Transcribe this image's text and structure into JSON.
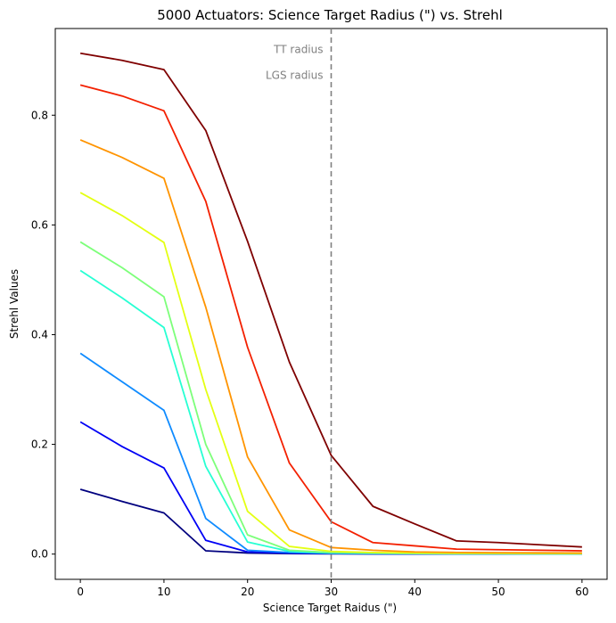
{
  "chart_data": {
    "type": "line",
    "title": "5000 Actuators: Science Target Radius (\") vs. Strehl",
    "xlabel": "Science Target Raidus (\")",
    "ylabel": "Strehl Values",
    "xlim": [
      -3,
      63
    ],
    "ylim": [
      -0.046,
      0.958
    ],
    "xticks": [
      0,
      10,
      20,
      30,
      40,
      50,
      60
    ],
    "yticks": [
      0.0,
      0.2,
      0.4,
      0.6,
      0.8
    ],
    "xtick_labels": [
      "0",
      "10",
      "20",
      "30",
      "40",
      "50",
      "60"
    ],
    "ytick_labels": [
      "0.0",
      "0.2",
      "0.4",
      "0.6",
      "0.8"
    ],
    "grid": false,
    "legend": "none",
    "x": [
      0,
      5,
      10,
      15,
      20,
      25,
      30,
      35,
      40,
      45,
      50,
      55,
      60
    ],
    "series": [
      {
        "color": "#00007f",
        "values": [
          0.118,
          0.096,
          0.075,
          0.006,
          0.002,
          0.001,
          0.0005,
          0.0003,
          0.0002,
          0.0001,
          0.0001,
          0.0001,
          0.0001
        ]
      },
      {
        "color": "#0000f5",
        "values": [
          0.241,
          0.196,
          0.157,
          0.025,
          0.004,
          0.002,
          0.001,
          0.0006,
          0.0004,
          0.0003,
          0.0003,
          0.0002,
          0.0002
        ]
      },
      {
        "color": "#0f8bff",
        "values": [
          0.366,
          0.314,
          0.262,
          0.065,
          0.007,
          0.003,
          0.0015,
          0.001,
          0.0008,
          0.0006,
          0.0005,
          0.0005,
          0.0004
        ]
      },
      {
        "color": "#27ffd3",
        "values": [
          0.517,
          0.467,
          0.413,
          0.16,
          0.022,
          0.005,
          0.002,
          0.0015,
          0.001,
          0.0008,
          0.0007,
          0.0006,
          0.0005
        ]
      },
      {
        "color": "#7dff7a",
        "values": [
          0.569,
          0.522,
          0.469,
          0.2,
          0.035,
          0.007,
          0.003,
          0.002,
          0.0015,
          0.001,
          0.0009,
          0.0008,
          0.0007
        ]
      },
      {
        "color": "#e4ff13",
        "values": [
          0.659,
          0.617,
          0.568,
          0.3,
          0.078,
          0.014,
          0.005,
          0.003,
          0.002,
          0.0018,
          0.0016,
          0.0014,
          0.0012
        ]
      },
      {
        "color": "#ff9400",
        "values": [
          0.755,
          0.723,
          0.685,
          0.45,
          0.177,
          0.044,
          0.012,
          0.007,
          0.004,
          0.003,
          0.0025,
          0.0022,
          0.002
        ]
      },
      {
        "color": "#f32000",
        "values": [
          0.855,
          0.835,
          0.808,
          0.643,
          0.377,
          0.166,
          0.059,
          0.021,
          0.015,
          0.009,
          0.008,
          0.007,
          0.006
        ]
      },
      {
        "color": "#7f0000",
        "values": [
          0.913,
          0.9,
          0.883,
          0.772,
          0.57,
          0.35,
          0.18,
          0.087,
          0.055,
          0.024,
          0.021,
          0.017,
          0.013
        ]
      }
    ],
    "vline": {
      "x": 30,
      "color": "#808080",
      "style": "dashed"
    },
    "annotations": [
      {
        "text": "TT radius",
        "y": 0.92,
        "color": "#808080"
      },
      {
        "text": "LGS radius",
        "y": 0.873,
        "color": "#808080"
      }
    ]
  }
}
